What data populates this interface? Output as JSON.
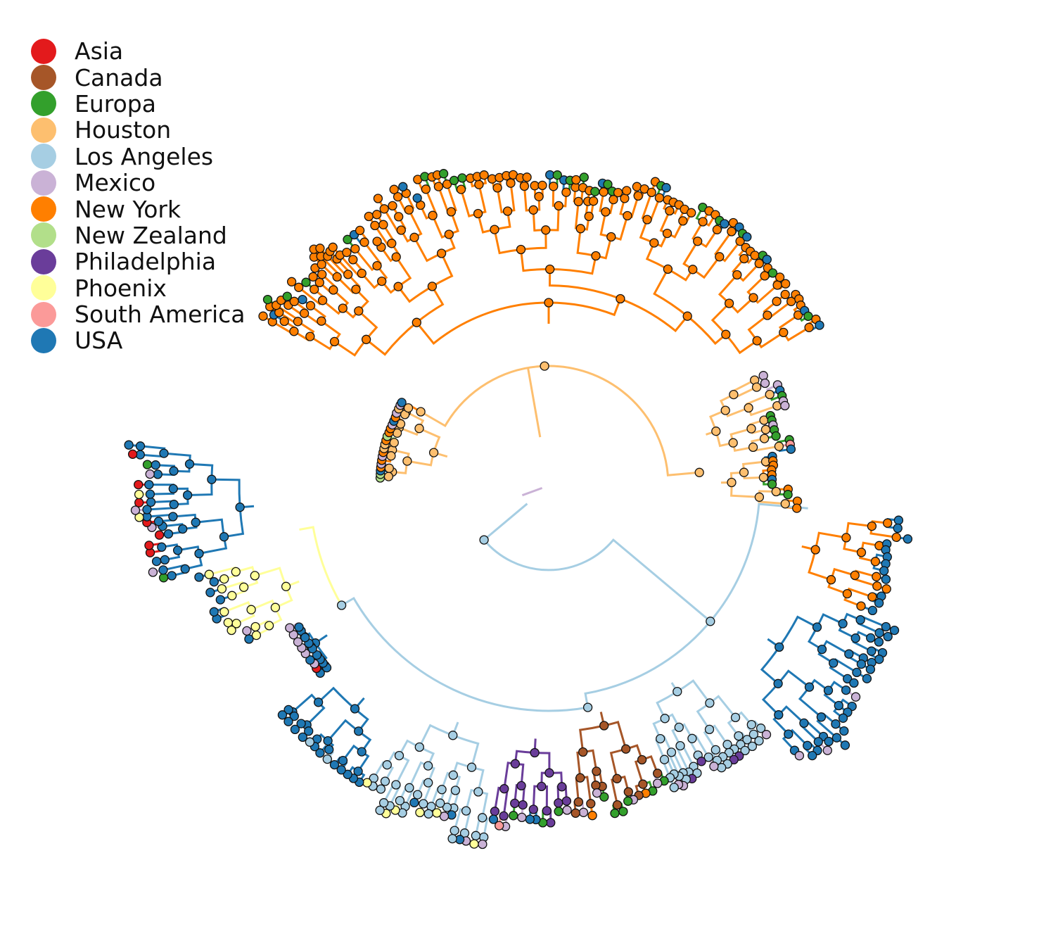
{
  "legend": [
    {
      "label": "Asia",
      "color": "#e31a1c"
    },
    {
      "label": "Canada",
      "color": "#a65628"
    },
    {
      "label": "Europa",
      "color": "#33a02c"
    },
    {
      "label": "Houston",
      "color": "#fdbf6f"
    },
    {
      "label": "Los Angeles",
      "color": "#a6cee3"
    },
    {
      "label": "Mexico",
      "color": "#cab2d6"
    },
    {
      "label": "New York",
      "color": "#ff7f00"
    },
    {
      "label": "New Zealand",
      "color": "#b2df8a"
    },
    {
      "label": "Philadelphia",
      "color": "#6a3d9a"
    },
    {
      "label": "Phoenix",
      "color": "#ffff99"
    },
    {
      "label": "South America",
      "color": "#fb9a99"
    },
    {
      "label": "USA",
      "color": "#1f78b4"
    }
  ]
}
